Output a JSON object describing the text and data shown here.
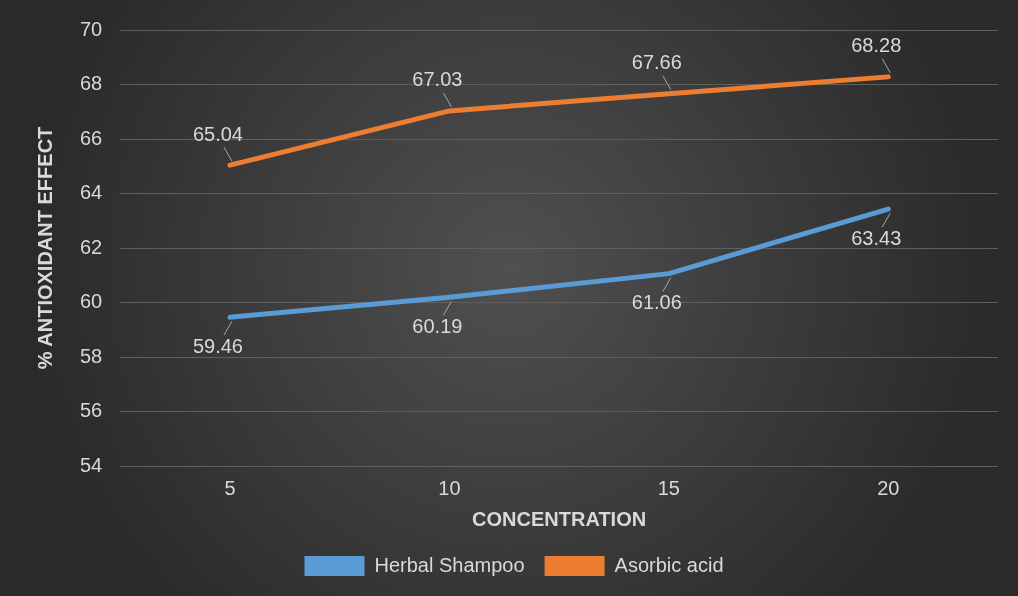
{
  "chart_data": {
    "type": "line",
    "xlabel": "CONCENTRATION",
    "ylabel": "% ANTIOXIDANT EFFECT",
    "categories": [
      "5",
      "10",
      "15",
      "20"
    ],
    "series": [
      {
        "name": "Herbal Shampoo",
        "color": "#5b9bd5",
        "values": [
          59.46,
          60.19,
          61.06,
          63.43
        ]
      },
      {
        "name": "Asorbic acid",
        "color": "#ed7d31",
        "values": [
          65.04,
          67.03,
          67.66,
          68.28
        ]
      }
    ],
    "ylim": [
      54,
      70
    ],
    "yticks": [
      54,
      56,
      58,
      60,
      62,
      64,
      66,
      68,
      70
    ],
    "grid": "y",
    "legend": "bottom",
    "data_labels": true,
    "marker": "none",
    "line_style": "solid"
  }
}
